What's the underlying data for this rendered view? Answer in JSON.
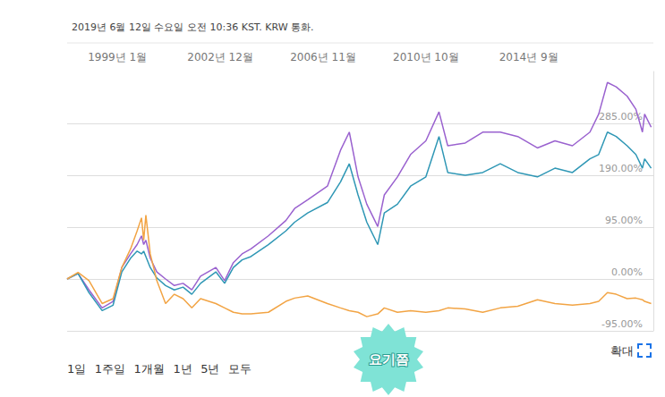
{
  "chart_data": {
    "type": "line",
    "title": "2019년 6월 12일 수요일 오전 10:36 KST. KRW 통화.",
    "x": [
      "1997-02",
      "1997-07",
      "1997-12",
      "1998-06",
      "1998-11",
      "1999-03",
      "1999-07",
      "1999-10",
      "1999-12",
      "2000-01",
      "2000-02",
      "2000-04",
      "2000-07",
      "2000-11",
      "2001-03",
      "2001-07",
      "2001-11",
      "2002-03",
      "2002-10",
      "2003-02",
      "2003-06",
      "2003-10",
      "2004-02",
      "2004-10",
      "2005-06",
      "2005-10",
      "2006-04",
      "2007-01",
      "2007-07",
      "2007-11",
      "2008-03",
      "2008-07",
      "2008-12",
      "2009-03",
      "2009-09",
      "2010-03",
      "2010-10",
      "2011-04",
      "2011-08",
      "2012-04",
      "2012-12",
      "2013-08",
      "2014-04",
      "2015-01",
      "2015-09",
      "2016-05",
      "2017-01",
      "2017-05",
      "2017-09",
      "2018-01",
      "2018-06",
      "2018-10",
      "2019-01",
      "2019-02",
      "2019-05"
    ],
    "series": [
      {
        "color": "#9a62cf",
        "values": [
          0,
          10,
          -20,
          -53,
          -41,
          21,
          46,
          63,
          79,
          63,
          71,
          38,
          13,
          0,
          -12,
          -8,
          -20,
          5,
          21,
          -3,
          30,
          46,
          55,
          79,
          107,
          129,
          145,
          170,
          236,
          269,
          187,
          137,
          96,
          154,
          187,
          228,
          253,
          306,
          244,
          249,
          269,
          269,
          261,
          240,
          253,
          244,
          269,
          302,
          360,
          352,
          335,
          311,
          269,
          302,
          278
        ]
      },
      {
        "color": "#2f97b5",
        "values": [
          0,
          10,
          -25,
          -58,
          -48,
          13,
          38,
          51,
          46,
          51,
          41,
          21,
          2,
          -12,
          -20,
          -15,
          -28,
          -8,
          13,
          -8,
          21,
          35,
          41,
          63,
          88,
          104,
          121,
          140,
          178,
          211,
          154,
          104,
          63,
          121,
          137,
          170,
          187,
          261,
          195,
          190,
          195,
          211,
          195,
          187,
          203,
          195,
          220,
          228,
          269,
          261,
          244,
          228,
          203,
          220,
          203
        ]
      },
      {
        "color": "#f2a444",
        "values": [
          0,
          12,
          -3,
          -45,
          -36,
          21,
          55,
          88,
          112,
          71,
          117,
          46,
          -3,
          -45,
          -28,
          -36,
          -53,
          -36,
          -45,
          -53,
          -61,
          -64,
          -64,
          -61,
          -41,
          -35,
          -31,
          -45,
          -53,
          -58,
          -61,
          -69,
          -64,
          -53,
          -61,
          -58,
          -61,
          -58,
          -53,
          -55,
          -61,
          -53,
          -50,
          -38,
          -45,
          -48,
          -45,
          -41,
          -25,
          -28,
          -36,
          -35,
          -38,
          -41,
          -45
        ]
      }
    ],
    "xlim": [
      "1997-02",
      "2019-06"
    ],
    "xticks": [
      {
        "value": "1999-01",
        "label": "1999년 1월"
      },
      {
        "value": "2002-12",
        "label": "2002년 12월"
      },
      {
        "value": "2006-11",
        "label": "2006년 11월"
      },
      {
        "value": "2010-10",
        "label": "2010년 10월"
      },
      {
        "value": "2014-09",
        "label": "2014년 9월"
      }
    ],
    "ylim": [
      -95,
      380
    ],
    "yticks": [
      {
        "value": -95,
        "label": "-95.00%"
      },
      {
        "value": 0,
        "label": "0.00%"
      },
      {
        "value": 95,
        "label": "95.00%"
      },
      {
        "value": 190,
        "label": "190.00%"
      },
      {
        "value": 285,
        "label": "285.00%"
      }
    ],
    "grid": true,
    "buttons": [
      "1일",
      "1주일",
      "1개월",
      "1년",
      "5년",
      "모두"
    ],
    "zoom_label": "확대",
    "annotations": [
      "요기쯤"
    ]
  }
}
